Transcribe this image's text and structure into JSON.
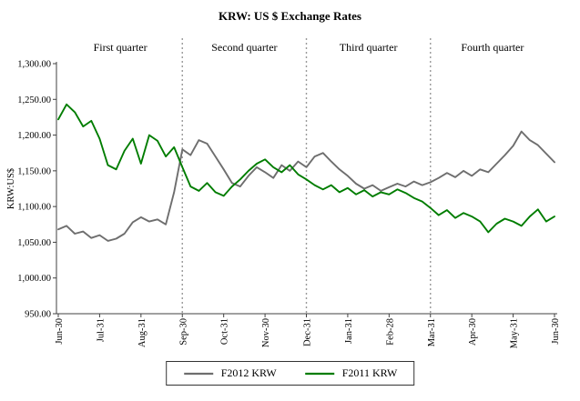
{
  "title": "KRW: US $ Exchange Rates",
  "chart_data": {
    "type": "line",
    "title": "KRW: US $ Exchange Rates",
    "ylabel": "KRW:US$",
    "xlabel": "",
    "ylim": [
      950,
      1300
    ],
    "x_range": [
      0,
      12
    ],
    "grid": false,
    "legend_position": "bottom",
    "y_ticks": [
      950,
      1000,
      1050,
      1100,
      1150,
      1200,
      1250,
      1300
    ],
    "y_tick_labels": [
      "950.00",
      "1,000.00",
      "1,050.00",
      "1,100.00",
      "1,150.00",
      "1,200.00",
      "1,250.00",
      "1,300.00"
    ],
    "x_tick_labels": [
      "Jun-30",
      "Jul-31",
      "Aug-31",
      "Sep-30",
      "Oct-31",
      "Nov-30",
      "Dec-31",
      "Jan-31",
      "Feb-28",
      "Mar-31",
      "Apr-30",
      "May-31",
      "Jun-30"
    ],
    "separator_x": [
      3,
      6,
      9
    ],
    "separator_color": "#999999",
    "quarters": [
      {
        "label": "First quarter",
        "from": 0,
        "to": 3
      },
      {
        "label": "Second quarter",
        "from": 3,
        "to": 6
      },
      {
        "label": "Third quarter",
        "from": 6,
        "to": 9
      },
      {
        "label": "Fourth quarter",
        "from": 9,
        "to": 12
      }
    ],
    "axis_color": "#404040",
    "series": [
      {
        "name": "F2012 KRW",
        "color": "#6e6e6e",
        "x_start": 0,
        "x_step": 0.2,
        "values": [
          1068,
          1073,
          1062,
          1065,
          1056,
          1060,
          1052,
          1055,
          1062,
          1078,
          1085,
          1079,
          1082,
          1075,
          1120,
          1180,
          1172,
          1193,
          1188,
          1170,
          1152,
          1133,
          1128,
          1143,
          1155,
          1148,
          1140,
          1158,
          1150,
          1163,
          1155,
          1170,
          1175,
          1163,
          1152,
          1143,
          1132,
          1125,
          1130,
          1122,
          1127,
          1132,
          1128,
          1135,
          1130,
          1134,
          1140,
          1147,
          1141,
          1150,
          1143,
          1152,
          1148,
          1160,
          1172,
          1185,
          1205,
          1193,
          1186,
          1174,
          1162
        ]
      },
      {
        "name": "F2011 KRW",
        "color": "#007d00",
        "x_start": 0,
        "x_step": 0.2,
        "values": [
          1222,
          1243,
          1232,
          1212,
          1220,
          1195,
          1158,
          1152,
          1178,
          1195,
          1160,
          1200,
          1192,
          1170,
          1183,
          1155,
          1128,
          1122,
          1133,
          1120,
          1115,
          1128,
          1138,
          1150,
          1160,
          1166,
          1155,
          1148,
          1158,
          1145,
          1138,
          1130,
          1124,
          1130,
          1120,
          1126,
          1117,
          1123,
          1114,
          1120,
          1117,
          1124,
          1119,
          1112,
          1107,
          1098,
          1088,
          1095,
          1084,
          1091,
          1086,
          1079,
          1064,
          1076,
          1083,
          1079,
          1073,
          1086,
          1096,
          1079,
          1086
        ]
      }
    ]
  }
}
